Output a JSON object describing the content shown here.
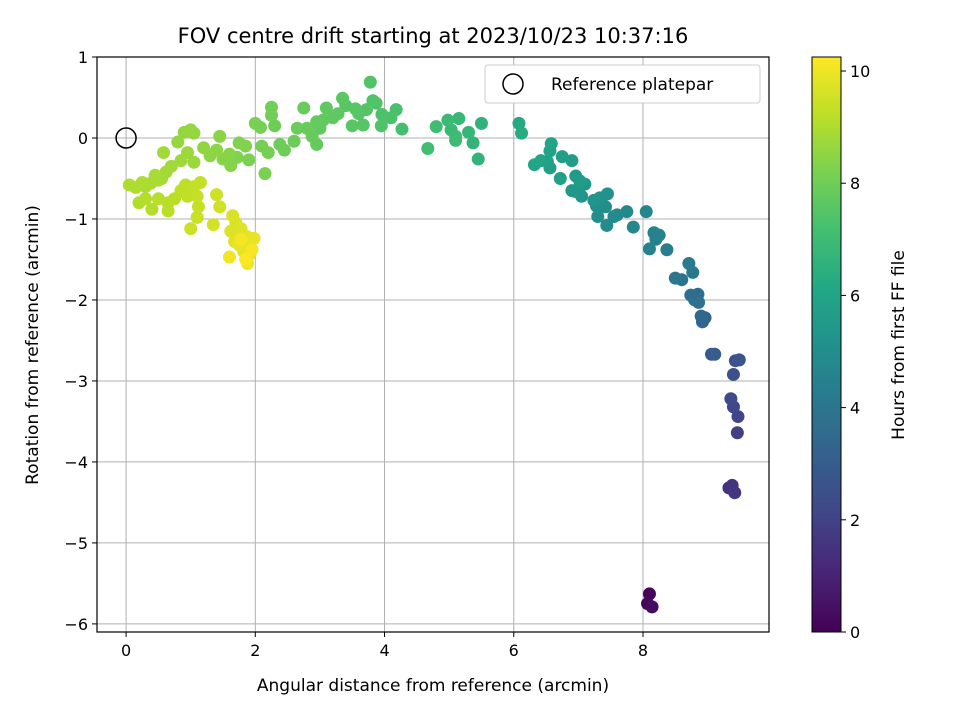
{
  "chart_data": {
    "type": "scatter",
    "title": "FOV centre drift starting at 2023/10/23 10:37:16",
    "xlabel": "Angular distance from reference (arcmin)",
    "ylabel": "Rotation from reference (arcmin)",
    "xlim": [
      -0.45,
      9.95
    ],
    "ylim": [
      -6.1,
      1.0
    ],
    "x_ticks": [
      0,
      2,
      4,
      6,
      8
    ],
    "y_ticks": [
      1,
      0,
      -1,
      -2,
      -3,
      -4,
      -5,
      -6
    ],
    "grid": true,
    "legend": {
      "position": "top-right",
      "entries": [
        "Reference platepar"
      ]
    },
    "reference_point": {
      "x": 0,
      "y": 0
    },
    "colorbar": {
      "label": "Hours from first FF file",
      "min": 0,
      "max": 10.25,
      "ticks": [
        0,
        2,
        4,
        6,
        8,
        10
      ],
      "colormap": "viridis"
    },
    "series": [
      {
        "points": [
          [
            8.1,
            -5.63,
            0.1
          ],
          [
            8.07,
            -5.75,
            0.2
          ],
          [
            8.14,
            -5.79,
            0.3
          ],
          [
            9.33,
            -4.32,
            1.4
          ],
          [
            9.38,
            -4.29,
            1.5
          ],
          [
            9.42,
            -4.38,
            1.6
          ],
          [
            9.46,
            -3.64,
            1.9
          ],
          [
            9.47,
            -3.44,
            2.1
          ],
          [
            9.4,
            -3.32,
            2.2
          ],
          [
            9.36,
            -3.22,
            2.3
          ],
          [
            9.4,
            -2.92,
            2.5
          ],
          [
            9.43,
            -2.75,
            2.6
          ],
          [
            9.49,
            -2.74,
            2.7
          ],
          [
            9.06,
            -2.67,
            2.9
          ],
          [
            9.11,
            -2.67,
            3.0
          ],
          [
            8.96,
            -2.22,
            3.2
          ],
          [
            8.92,
            -2.27,
            3.3
          ],
          [
            8.9,
            -2.2,
            3.4
          ],
          [
            8.85,
            -1.93,
            3.6
          ],
          [
            8.74,
            -1.94,
            3.7
          ],
          [
            8.8,
            -2.0,
            3.7
          ],
          [
            8.86,
            -2.03,
            3.8
          ],
          [
            8.6,
            -1.75,
            3.95
          ],
          [
            8.5,
            -1.73,
            4.0
          ],
          [
            8.77,
            -1.66,
            4.1
          ],
          [
            8.71,
            -1.55,
            4.2
          ],
          [
            8.37,
            -1.38,
            4.35
          ],
          [
            8.2,
            -1.25,
            4.4
          ],
          [
            8.17,
            -1.17,
            4.45
          ],
          [
            8.25,
            -1.2,
            4.5
          ],
          [
            8.1,
            -1.37,
            4.55
          ],
          [
            8.05,
            -0.91,
            4.65
          ],
          [
            7.85,
            -1.1,
            4.7
          ],
          [
            7.75,
            -0.91,
            4.75
          ],
          [
            7.6,
            -0.95,
            4.8
          ],
          [
            7.55,
            -0.97,
            4.85
          ],
          [
            7.44,
            -1.08,
            4.9
          ],
          [
            7.42,
            -0.85,
            4.95
          ],
          [
            7.3,
            -0.97,
            5.0
          ],
          [
            7.28,
            -0.84,
            5.05
          ],
          [
            7.35,
            -0.78,
            5.1
          ],
          [
            7.45,
            -0.69,
            5.15
          ],
          [
            7.33,
            -0.74,
            5.2
          ],
          [
            7.24,
            -0.77,
            5.25
          ],
          [
            7.05,
            -0.72,
            5.3
          ],
          [
            6.95,
            -0.66,
            5.35
          ],
          [
            7.03,
            -0.58,
            5.4
          ],
          [
            6.9,
            -0.65,
            5.45
          ],
          [
            7.1,
            -0.57,
            5.5
          ],
          [
            6.96,
            -0.47,
            5.55
          ],
          [
            7.02,
            -0.53,
            5.6
          ],
          [
            6.9,
            -0.28,
            5.65
          ],
          [
            6.75,
            -0.23,
            5.7
          ],
          [
            6.72,
            -0.5,
            5.75
          ],
          [
            6.56,
            -0.37,
            5.8
          ],
          [
            6.52,
            -0.29,
            5.85
          ],
          [
            6.56,
            -0.16,
            5.9
          ],
          [
            6.58,
            -0.07,
            5.95
          ],
          [
            6.42,
            -0.28,
            6.0
          ],
          [
            6.32,
            -0.33,
            6.05
          ],
          [
            6.08,
            0.18,
            6.2
          ],
          [
            6.12,
            0.06,
            6.3
          ],
          [
            5.5,
            0.18,
            6.6
          ],
          [
            5.45,
            -0.26,
            6.65
          ],
          [
            5.37,
            -0.06,
            6.7
          ],
          [
            5.3,
            0.07,
            6.75
          ],
          [
            5.15,
            0.24,
            6.8
          ],
          [
            5.03,
            0.1,
            6.85
          ],
          [
            4.98,
            0.22,
            6.9
          ],
          [
            5.1,
            0.02,
            6.95
          ],
          [
            5.1,
            -0.03,
            7.0
          ],
          [
            4.8,
            0.14,
            7.05
          ],
          [
            4.67,
            -0.13,
            7.1
          ],
          [
            4.27,
            0.11,
            7.2
          ],
          [
            4.18,
            0.35,
            7.25
          ],
          [
            4.1,
            0.25,
            7.3
          ],
          [
            3.96,
            0.29,
            7.35
          ],
          [
            3.95,
            0.15,
            7.38
          ],
          [
            3.87,
            0.43,
            7.4
          ],
          [
            3.82,
            0.46,
            7.42
          ],
          [
            3.78,
            0.69,
            7.45
          ],
          [
            3.72,
            0.35,
            7.48
          ],
          [
            3.67,
            0.16,
            7.5
          ],
          [
            3.6,
            0.3,
            7.52
          ],
          [
            3.55,
            0.36,
            7.55
          ],
          [
            3.5,
            0.15,
            7.58
          ],
          [
            3.4,
            0.4,
            7.6
          ],
          [
            3.35,
            0.49,
            7.62
          ],
          [
            3.28,
            0.3,
            7.65
          ],
          [
            3.2,
            0.25,
            7.68
          ],
          [
            3.1,
            0.37,
            7.7
          ],
          [
            3.05,
            0.22,
            7.72
          ],
          [
            3.0,
            0.12,
            7.75
          ],
          [
            2.95,
            0.2,
            7.78
          ],
          [
            2.95,
            -0.08,
            7.8
          ],
          [
            2.88,
            0.02,
            7.82
          ],
          [
            2.8,
            0.12,
            7.85
          ],
          [
            2.75,
            0.37,
            7.88
          ],
          [
            2.65,
            0.12,
            7.9
          ],
          [
            2.6,
            -0.04,
            7.92
          ],
          [
            2.45,
            -0.15,
            7.95
          ],
          [
            2.38,
            -0.08,
            7.98
          ],
          [
            2.3,
            0.15,
            8.0
          ],
          [
            2.25,
            0.38,
            8.02
          ],
          [
            2.25,
            0.28,
            8.05
          ],
          [
            2.2,
            -0.18,
            8.08
          ],
          [
            2.1,
            -0.1,
            8.1
          ],
          [
            2.08,
            0.13,
            8.12
          ],
          [
            2.0,
            0.18,
            8.15
          ],
          [
            2.15,
            -0.44,
            8.18
          ],
          [
            1.9,
            -0.27,
            8.2
          ],
          [
            1.72,
            -0.24,
            8.25
          ],
          [
            1.75,
            -0.06,
            8.28
          ],
          [
            1.85,
            -0.1,
            8.3
          ],
          [
            1.62,
            -0.34,
            8.35
          ],
          [
            1.5,
            -0.26,
            8.38
          ],
          [
            1.6,
            -0.2,
            8.4
          ],
          [
            1.45,
            0.02,
            8.45
          ],
          [
            1.4,
            -0.15,
            8.48
          ],
          [
            1.3,
            -0.22,
            8.5
          ],
          [
            1.2,
            -0.12,
            8.55
          ],
          [
            1.05,
            0.06,
            8.58
          ],
          [
            0.9,
            0.07,
            8.6
          ],
          [
            1.0,
            0.1,
            8.62
          ],
          [
            0.8,
            -0.05,
            8.65
          ],
          [
            1.05,
            -0.3,
            8.7
          ],
          [
            0.95,
            -0.18,
            8.72
          ],
          [
            0.85,
            -0.28,
            8.75
          ],
          [
            0.7,
            -0.35,
            8.78
          ],
          [
            0.58,
            -0.18,
            8.8
          ],
          [
            0.62,
            -0.42,
            8.82
          ],
          [
            0.55,
            -0.5,
            8.85
          ],
          [
            0.5,
            -0.52,
            8.88
          ],
          [
            0.45,
            -0.46,
            8.9
          ],
          [
            0.38,
            -0.56,
            8.92
          ],
          [
            0.3,
            -0.6,
            8.95
          ],
          [
            0.25,
            -0.55,
            8.98
          ],
          [
            0.15,
            -0.61,
            9.0
          ],
          [
            0.05,
            -0.58,
            9.02
          ],
          [
            0.2,
            -0.8,
            9.05
          ],
          [
            0.3,
            -0.75,
            9.08
          ],
          [
            0.4,
            -0.88,
            9.1
          ],
          [
            0.5,
            -0.75,
            9.12
          ],
          [
            0.65,
            -0.8,
            9.15
          ],
          [
            0.75,
            -0.75,
            9.18
          ],
          [
            0.65,
            -0.9,
            9.2
          ],
          [
            0.85,
            -0.65,
            9.22
          ],
          [
            0.92,
            -0.58,
            9.25
          ],
          [
            0.95,
            -0.72,
            9.28
          ],
          [
            1.05,
            -0.6,
            9.3
          ],
          [
            1.15,
            -0.55,
            9.32
          ],
          [
            1.1,
            -0.72,
            9.35
          ],
          [
            1.12,
            -0.85,
            9.38
          ],
          [
            1.1,
            -0.98,
            9.4
          ],
          [
            1.0,
            -1.12,
            9.45
          ],
          [
            1.4,
            -0.7,
            9.5
          ],
          [
            1.45,
            -0.85,
            9.55
          ],
          [
            1.35,
            -1.07,
            9.6
          ],
          [
            1.65,
            -0.96,
            9.65
          ],
          [
            1.7,
            -1.05,
            9.68
          ],
          [
            1.62,
            -1.15,
            9.7
          ],
          [
            1.72,
            -1.2,
            9.72
          ],
          [
            1.78,
            -1.12,
            9.75
          ],
          [
            1.68,
            -1.28,
            9.78
          ],
          [
            1.8,
            -1.35,
            9.8
          ],
          [
            1.88,
            -1.22,
            9.82
          ],
          [
            1.82,
            -1.4,
            9.85
          ],
          [
            1.92,
            -1.3,
            9.88
          ],
          [
            1.98,
            -1.24,
            9.9
          ],
          [
            1.75,
            -1.32,
            9.92
          ],
          [
            1.9,
            -1.45,
            9.95
          ],
          [
            1.88,
            -1.55,
            10.0
          ],
          [
            1.6,
            -1.47,
            10.05
          ],
          [
            1.78,
            -1.25,
            10.1
          ],
          [
            1.95,
            -1.38,
            10.15
          ],
          [
            1.85,
            -1.5,
            10.2
          ]
        ]
      }
    ]
  }
}
